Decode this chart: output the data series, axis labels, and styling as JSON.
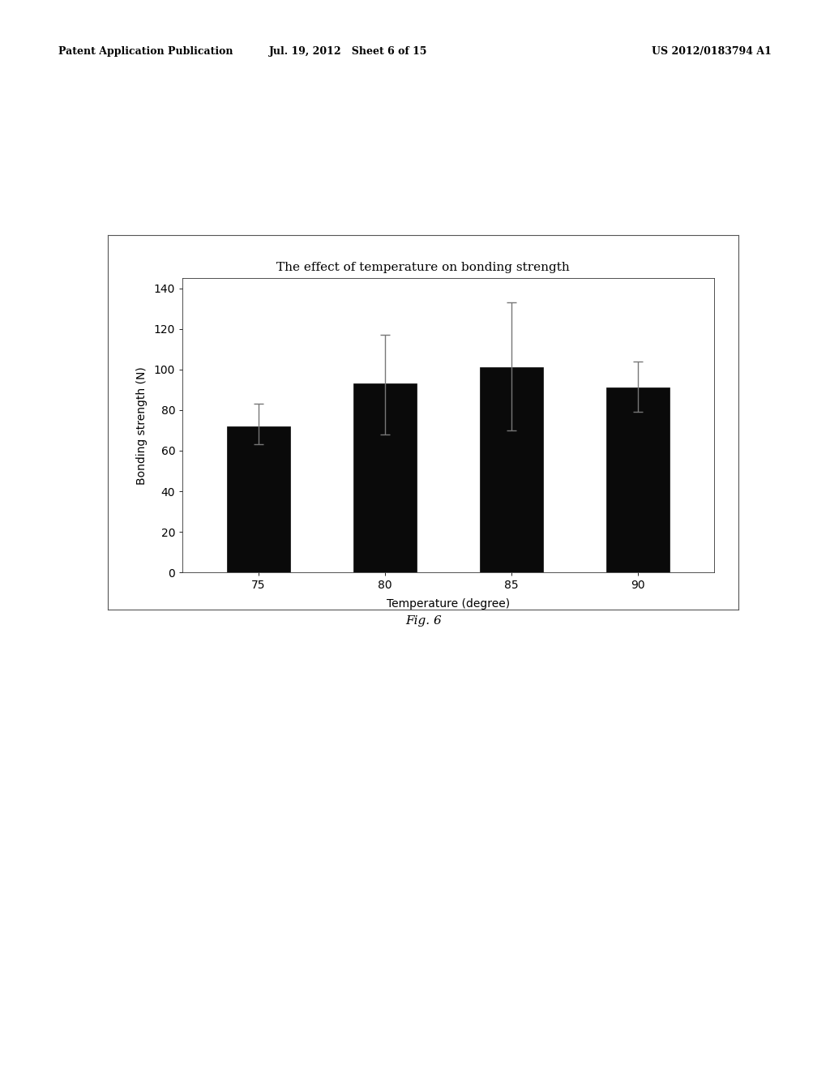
{
  "title": "The effect of temperature on bonding strength",
  "xlabel": "Temperature (degree)",
  "ylabel": "Bonding strength (N)",
  "categories": [
    75,
    80,
    85,
    90
  ],
  "values": [
    72,
    93,
    101,
    91
  ],
  "yerr_upper": [
    11,
    24,
    32,
    13
  ],
  "yerr_lower": [
    9,
    25,
    31,
    12
  ],
  "bar_color": "#0a0a0a",
  "bar_edge_color": "#0a0a0a",
  "error_color": "#777777",
  "background_color": "#ffffff",
  "plot_bg_color": "#ffffff",
  "ylim": [
    0,
    145
  ],
  "yticks": [
    0,
    20,
    40,
    60,
    80,
    100,
    120,
    140
  ],
  "bar_width": 0.5,
  "title_fontsize": 11,
  "axis_label_fontsize": 10,
  "tick_fontsize": 10,
  "fig_caption": "Fig. 6",
  "header_left": "Patent Application Publication",
  "header_center": "Jul. 19, 2012   Sheet 6 of 15",
  "header_right": "US 2012/0183794 A1",
  "header_fontsize": 9
}
